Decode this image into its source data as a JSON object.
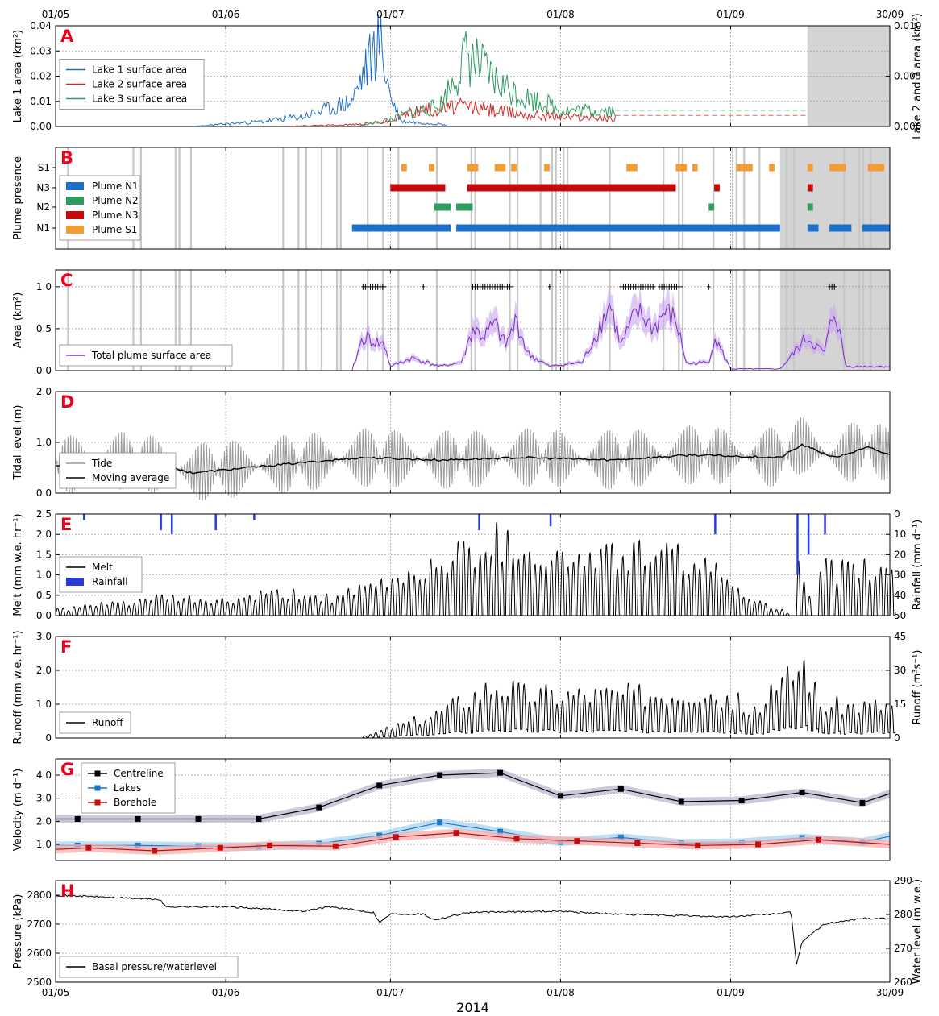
{
  "chart_data": [
    {
      "type": "line",
      "panel": "A",
      "ylabel": "Lake 1 area (km²)",
      "ylabel_right": "Lake 2 and 3 area (km²)",
      "ylim": [
        0,
        0.04
      ],
      "yticks": [
        "0.00",
        "0.01",
        "0.02",
        "0.03",
        "0.04"
      ],
      "ylim_right": [
        0,
        0.01
      ],
      "yticks_right": [
        "0.000",
        "0.005",
        "0.010"
      ],
      "shaded_x": [
        [
          "2014-09-15",
          "2014-09-30"
        ]
      ],
      "legend": "mid-left",
      "series": [
        {
          "name": "Lake 1 surface area",
          "color": "#1f6fc4",
          "axis": "left",
          "x": [
            "2014-05-26",
            "2014-06-01",
            "2014-06-08",
            "2014-06-15",
            "2014-06-20",
            "2014-06-24",
            "2014-06-27",
            "2014-06-29",
            "2014-07-01",
            "2014-07-03",
            "2014-07-10",
            "2014-07-12"
          ],
          "y": [
            0.0,
            0.001,
            0.002,
            0.004,
            0.007,
            0.01,
            0.025,
            0.035,
            0.012,
            0.002,
            0.001,
            0.0
          ]
        },
        {
          "name": "Lake 2 surface area",
          "color": "#d62728",
          "axis": "right",
          "x": [
            "2014-06-10",
            "2014-06-25",
            "2014-07-01",
            "2014-07-05",
            "2014-07-10",
            "2014-07-15",
            "2014-07-20",
            "2014-07-26",
            "2014-08-01",
            "2014-08-06",
            "2014-08-10",
            "2014-09-14"
          ],
          "y": [
            0.0,
            0.0002,
            0.0005,
            0.0015,
            0.0018,
            0.002,
            0.0016,
            0.0012,
            0.001,
            0.0009,
            0.0008,
            0.0011
          ]
        },
        {
          "name": "Lake 3 surface area",
          "color": "#2e9b5f",
          "axis": "right",
          "x": [
            "2014-06-25",
            "2014-07-01",
            "2014-07-05",
            "2014-07-10",
            "2014-07-15",
            "2014-07-20",
            "2014-07-25",
            "2014-07-30",
            "2014-08-01",
            "2014-09-14"
          ],
          "y": [
            0.0,
            0.0007,
            0.0014,
            0.002,
            0.0072,
            0.0045,
            0.003,
            0.0022,
            0.0016,
            0.0016
          ]
        }
      ]
    },
    {
      "type": "gantt",
      "panel": "B",
      "ylabel": "Plume presence",
      "rows": [
        "N1",
        "N2",
        "N3",
        "S1"
      ],
      "legend": "mid-left",
      "shaded_x": [
        [
          "2014-09-10",
          "2014-09-30"
        ]
      ],
      "series": [
        {
          "name": "Plume N1",
          "color": "#1e6fc8",
          "row": "N1",
          "intervals": [
            [
              "2014-06-24",
              "2014-07-12"
            ],
            [
              "2014-07-13",
              "2014-09-10"
            ],
            [
              "2014-09-15",
              "2014-09-17"
            ],
            [
              "2014-09-19",
              "2014-09-23"
            ],
            [
              "2014-09-25",
              "2014-09-30"
            ]
          ]
        },
        {
          "name": "Plume N2",
          "color": "#2e9b5f",
          "row": "N2",
          "intervals": [
            [
              "2014-07-09",
              "2014-07-12"
            ],
            [
              "2014-07-13",
              "2014-07-16"
            ],
            [
              "2014-08-28",
              "2014-08-29"
            ],
            [
              "2014-09-15",
              "2014-09-16"
            ]
          ]
        },
        {
          "name": "Plume N3",
          "color": "#c40c0c",
          "row": "N3",
          "intervals": [
            [
              "2014-07-01",
              "2014-07-11"
            ],
            [
              "2014-07-15",
              "2014-08-22"
            ],
            [
              "2014-08-29",
              "2014-08-30"
            ],
            [
              "2014-09-15",
              "2014-09-16"
            ]
          ]
        },
        {
          "name": "Plume S1",
          "color": "#f39c34",
          "row": "S1",
          "intervals": [
            [
              "2014-07-03",
              "2014-07-04"
            ],
            [
              "2014-07-08",
              "2014-07-09"
            ],
            [
              "2014-07-15",
              "2014-07-17"
            ],
            [
              "2014-07-20",
              "2014-07-22"
            ],
            [
              "2014-07-23",
              "2014-07-24"
            ],
            [
              "2014-07-29",
              "2014-07-30"
            ],
            [
              "2014-08-13",
              "2014-08-15"
            ],
            [
              "2014-08-22",
              "2014-08-24"
            ],
            [
              "2014-08-25",
              "2014-08-26"
            ],
            [
              "2014-09-02",
              "2014-09-05"
            ],
            [
              "2014-09-08",
              "2014-09-09"
            ],
            [
              "2014-09-15",
              "2014-09-16"
            ],
            [
              "2014-09-19",
              "2014-09-22"
            ],
            [
              "2014-09-26",
              "2014-09-29"
            ]
          ]
        }
      ]
    },
    {
      "type": "line",
      "panel": "C",
      "ylabel": "Area (km²)",
      "ylim": [
        0,
        1.2
      ],
      "yticks": [
        "0.0",
        "0.5",
        "1.0"
      ],
      "shaded_x": [
        [
          "2014-09-10",
          "2014-09-30"
        ]
      ],
      "legend": "lower-left",
      "series": [
        {
          "name": "Total plume surface area",
          "color": "#7b2fc4",
          "x": [
            "2014-06-24",
            "2014-06-26",
            "2014-06-28",
            "2014-06-30",
            "2014-07-01",
            "2014-07-05",
            "2014-07-10",
            "2014-07-14",
            "2014-07-16",
            "2014-07-18",
            "2014-07-20",
            "2014-07-22",
            "2014-07-24",
            "2014-07-26",
            "2014-07-30",
            "2014-08-05",
            "2014-08-08",
            "2014-08-10",
            "2014-08-12",
            "2014-08-15",
            "2014-08-18",
            "2014-08-20",
            "2014-08-22",
            "2014-08-24",
            "2014-08-28",
            "2014-08-29",
            "2014-09-01",
            "2014-09-10",
            "2014-09-15",
            "2014-09-18",
            "2014-09-20",
            "2014-09-22",
            "2014-09-26",
            "2014-09-30"
          ],
          "y": [
            0.0,
            0.4,
            0.35,
            0.3,
            0.05,
            0.15,
            0.05,
            0.1,
            0.5,
            0.4,
            0.55,
            0.3,
            0.6,
            0.2,
            0.05,
            0.1,
            0.5,
            0.8,
            0.3,
            0.7,
            0.5,
            0.7,
            0.6,
            0.08,
            0.1,
            0.4,
            0.02,
            0.02,
            0.4,
            0.2,
            0.75,
            0.05,
            0.05,
            0.05
          ]
        }
      ],
      "markers_y": 1.0
    },
    {
      "type": "line",
      "panel": "D",
      "ylabel": "Tidal level (m)",
      "ylim": [
        0,
        2
      ],
      "yticks": [
        "0.0",
        "1.0",
        "2.0"
      ],
      "legend": "lower-left",
      "series": [
        {
          "name": "Tide",
          "color": "#999999",
          "amplitude_range": [
            0.3,
            0.7
          ]
        },
        {
          "name": "Moving average",
          "color": "#000000",
          "x": [
            "2014-05-01",
            "2014-05-15",
            "2014-05-26",
            "2014-06-15",
            "2014-06-26",
            "2014-07-10",
            "2014-07-25",
            "2014-08-10",
            "2014-08-25",
            "2014-09-10",
            "2014-09-14",
            "2014-09-20",
            "2014-09-26",
            "2014-09-30"
          ],
          "y": [
            0.55,
            0.65,
            0.4,
            0.6,
            0.7,
            0.65,
            0.7,
            0.65,
            0.75,
            0.7,
            0.95,
            0.7,
            0.9,
            0.75
          ]
        }
      ]
    },
    {
      "type": "line",
      "panel": "E",
      "ylabel": "Melt (mm w.e. hr⁻¹)",
      "ylabel_right": "Rainfall (mm d⁻¹)",
      "ylim": [
        0,
        2.5
      ],
      "yticks": [
        "0.0",
        "0.5",
        "1.0",
        "1.5",
        "2.0",
        "2.5"
      ],
      "ylim_right": [
        50,
        0
      ],
      "yticks_right": [
        "0",
        "10",
        "20",
        "30",
        "40",
        "50"
      ],
      "legend": "mid-left",
      "series": [
        {
          "name": "Melt",
          "color": "#000000",
          "daily_peak_x": [
            "2014-05-03",
            "2014-05-20",
            "2014-06-01",
            "2014-06-08",
            "2014-06-15",
            "2014-06-20",
            "2014-06-25",
            "2014-07-01",
            "2014-07-08",
            "2014-07-15",
            "2014-07-20",
            "2014-08-01",
            "2014-08-15",
            "2014-08-25",
            "2014-09-05",
            "2014-09-12",
            "2014-09-13",
            "2014-09-16",
            "2014-09-17"
          ],
          "daily_peak_y": [
            0.2,
            0.5,
            0.4,
            0.6,
            0.6,
            0.5,
            0.7,
            1.0,
            1.4,
            1.9,
            2.2,
            1.6,
            1.8,
            1.6,
            0.5,
            0.0,
            1.3,
            0.0,
            1.3
          ]
        },
        {
          "name": "Rainfall",
          "color": "#2b3bd9",
          "x": [
            "2014-05-06",
            "2014-05-20",
            "2014-05-22",
            "2014-05-30",
            "2014-06-06",
            "2014-07-17",
            "2014-07-30",
            "2014-08-29",
            "2014-09-13",
            "2014-09-15",
            "2014-09-18"
          ],
          "y": [
            3,
            8,
            10,
            8,
            3,
            8,
            6,
            10,
            30,
            20,
            10
          ]
        }
      ]
    },
    {
      "type": "line",
      "panel": "F",
      "ylabel": "Runoff (mm w.e. hr⁻¹)",
      "ylabel_right": "Runoff (m³s⁻¹)",
      "ylim": [
        0,
        3
      ],
      "yticks": [
        "0",
        "1.0",
        "2.0",
        "3.0"
      ],
      "ylim_right": [
        0,
        45
      ],
      "yticks_right": [
        "0",
        "15",
        "30",
        "45"
      ],
      "legend": "lower-left",
      "series": [
        {
          "name": "Runoff",
          "color": "#000000",
          "daily_peak_x": [
            "2014-06-25",
            "2014-07-01",
            "2014-07-08",
            "2014-07-12",
            "2014-07-15",
            "2014-07-20",
            "2014-07-25",
            "2014-08-01",
            "2014-08-15",
            "2014-08-27",
            "2014-09-02",
            "2014-09-06",
            "2014-09-14",
            "2014-09-17"
          ],
          "daily_peak_y": [
            0.0,
            0.4,
            0.8,
            1.2,
            1.5,
            2.0,
            1.6,
            1.6,
            1.6,
            1.8,
            1.3,
            1.1,
            2.8,
            1.2
          ]
        }
      ]
    },
    {
      "type": "line",
      "panel": "G",
      "ylabel": "Velocity (m d⁻¹)",
      "ylim": [
        0.3,
        4.7
      ],
      "yticks": [
        "1.0",
        "2.0",
        "3.0",
        "4.0"
      ],
      "legend": "upper-left",
      "series": [
        {
          "name": "Centreline",
          "color": "#000000",
          "band": "#b8b8d0",
          "x": [
            "2014-05-01",
            "2014-05-05",
            "2014-05-16",
            "2014-05-27",
            "2014-06-07",
            "2014-06-18",
            "2014-06-29",
            "2014-07-10",
            "2014-07-21",
            "2014-08-01",
            "2014-08-12",
            "2014-08-23",
            "2014-09-03",
            "2014-09-14",
            "2014-09-25",
            "2014-09-30"
          ],
          "y": [
            2.1,
            2.1,
            2.1,
            2.1,
            2.1,
            2.6,
            3.55,
            4.0,
            4.1,
            3.1,
            3.4,
            2.85,
            2.9,
            3.25,
            2.8,
            3.2
          ]
        },
        {
          "name": "Lakes",
          "color": "#1f77c4",
          "band": "#aad4f2",
          "x": [
            "2014-05-01",
            "2014-05-05",
            "2014-05-16",
            "2014-05-27",
            "2014-06-07",
            "2014-06-18",
            "2014-06-29",
            "2014-07-10",
            "2014-07-21",
            "2014-08-01",
            "2014-08-12",
            "2014-08-23",
            "2014-09-03",
            "2014-09-14",
            "2014-09-25",
            "2014-09-30"
          ],
          "y": [
            0.95,
            0.95,
            0.95,
            0.92,
            0.9,
            1.03,
            1.38,
            1.95,
            1.55,
            1.1,
            1.3,
            1.05,
            1.08,
            1.28,
            1.1,
            1.35
          ]
        },
        {
          "name": "Borehole",
          "color": "#c40c0c",
          "band": "#f2b0b0",
          "x": [
            "2014-05-01",
            "2014-05-07",
            "2014-05-19",
            "2014-05-31",
            "2014-06-09",
            "2014-06-21",
            "2014-07-02",
            "2014-07-13",
            "2014-07-24",
            "2014-08-04",
            "2014-08-15",
            "2014-08-26",
            "2014-09-06",
            "2014-09-17",
            "2014-09-30"
          ],
          "y": [
            0.78,
            0.85,
            0.72,
            0.85,
            0.95,
            0.92,
            1.32,
            1.5,
            1.25,
            1.15,
            1.05,
            0.95,
            1.0,
            1.2,
            1.0
          ]
        }
      ]
    },
    {
      "type": "line",
      "panel": "H",
      "ylabel": "Pressure (kPa)",
      "ylabel_right": "Water level (m w.e.)",
      "ylim": [
        2500,
        2850
      ],
      "yticks": [
        "2500",
        "2600",
        "2700",
        "2800"
      ],
      "ylim_right": [
        260,
        290
      ],
      "yticks_right": [
        "260",
        "270",
        "280",
        "290"
      ],
      "legend": "lower-left",
      "series": [
        {
          "name": "Basal pressure/waterlevel",
          "color": "#000000",
          "x": [
            "2014-05-01",
            "2014-05-08",
            "2014-05-20",
            "2014-05-21",
            "2014-06-01",
            "2014-06-15",
            "2014-06-20",
            "2014-06-28",
            "2014-06-29",
            "2014-07-01",
            "2014-07-07",
            "2014-07-09",
            "2014-07-15",
            "2014-08-01",
            "2014-08-10",
            "2014-09-01",
            "2014-09-12",
            "2014-09-13",
            "2014-09-14",
            "2014-09-18",
            "2014-09-25",
            "2014-09-30"
          ],
          "y": [
            2800,
            2795,
            2785,
            2760,
            2760,
            2745,
            2760,
            2740,
            2705,
            2735,
            2735,
            2715,
            2740,
            2745,
            2735,
            2725,
            2740,
            2560,
            2640,
            2700,
            2720,
            2720
          ]
        }
      ]
    }
  ],
  "xaxis": {
    "ticks": [
      "01/05",
      "01/06",
      "01/07",
      "01/08",
      "01/09",
      "30/09"
    ],
    "title": "2014"
  },
  "panel_labels": [
    "A",
    "B",
    "C",
    "D",
    "E",
    "F",
    "G",
    "H"
  ]
}
